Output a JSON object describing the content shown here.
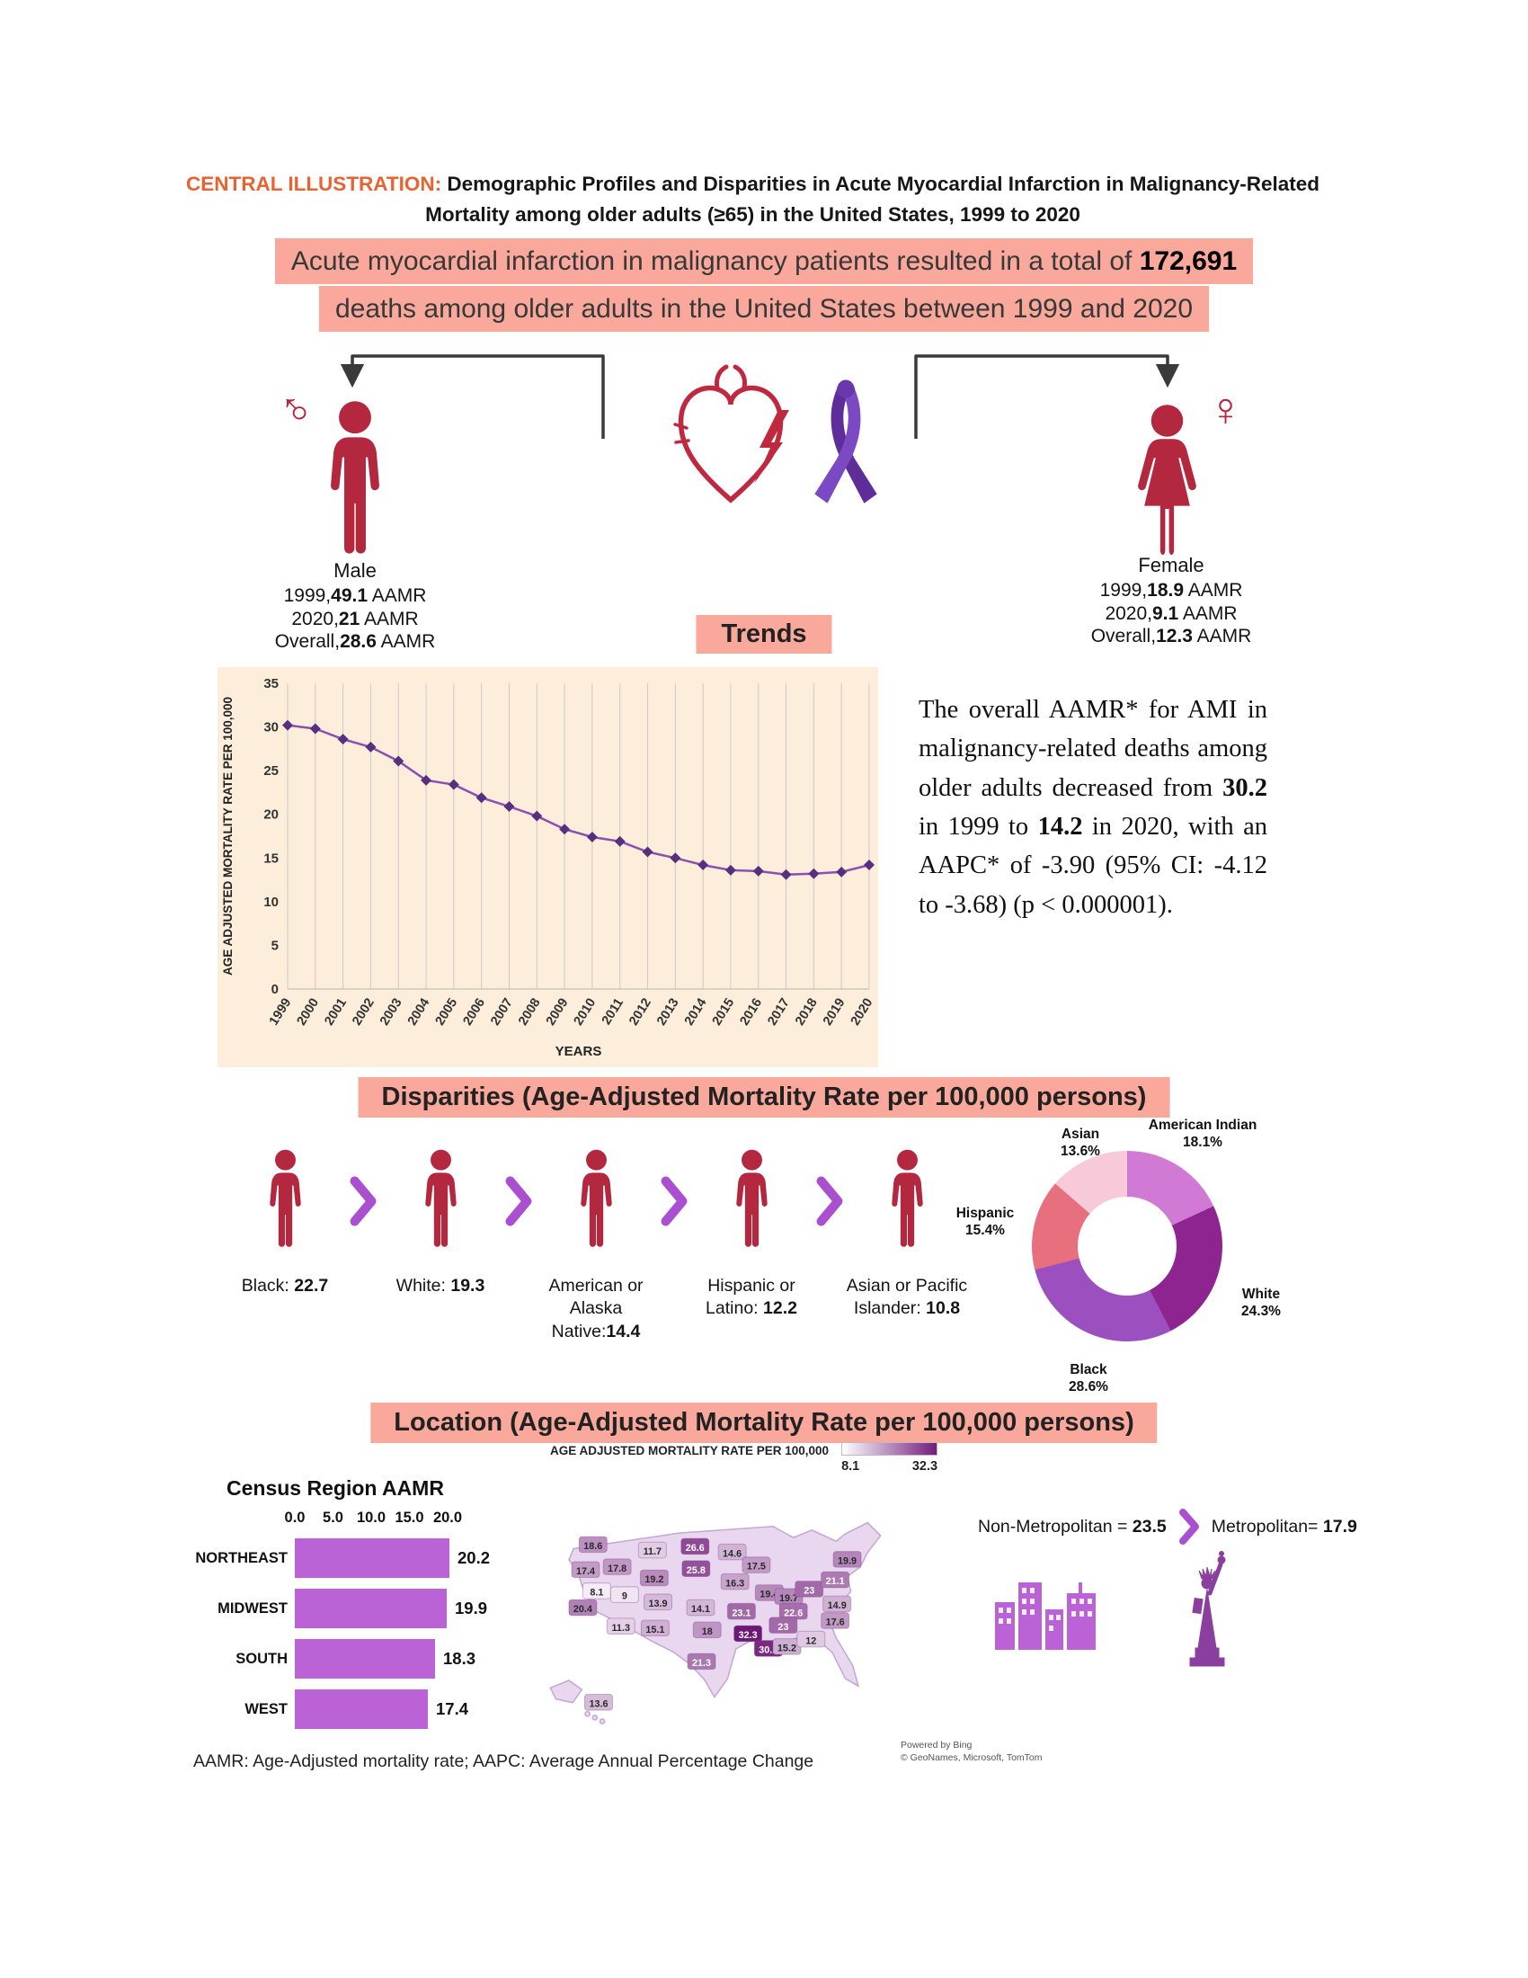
{
  "header": {
    "prefix": "CENTRAL ILLUSTRATION:",
    "title": " Demographic Profiles and Disparities in Acute Myocardial Infarction in Malignancy-Related Mortality among older adults (≥65) in the United States, 1999 to 2020"
  },
  "banner": {
    "line1_text": "Acute myocardial infarction in malignancy patients resulted in a total of ",
    "line1_bold": "172,691",
    "line2_text": "deaths among older adults in the United States between 1999 and 2020"
  },
  "sex_stats": {
    "male": {
      "label": "Male",
      "rows": [
        {
          "prefix": "1999,",
          "value": "49.1",
          "suffix": " AAMR"
        },
        {
          "prefix": "2020,",
          "value": "21",
          "suffix": " AAMR"
        },
        {
          "prefix": "Overall,",
          "value": "28.6",
          "suffix": " AAMR"
        }
      ]
    },
    "female": {
      "label": "Female",
      "rows": [
        {
          "prefix": "1999,",
          "value": "18.9",
          "suffix": " AAMR"
        },
        {
          "prefix": "2020,",
          "value": "9.1",
          "suffix": " AAMR"
        },
        {
          "prefix": "Overall,",
          "value": "12.3",
          "suffix": " AAMR"
        }
      ]
    }
  },
  "trends": {
    "label": "Trends",
    "paragraph": [
      {
        "text": "The overall AAMR* for AMI in malignancy-related deaths among older adults decreased from ",
        "bold": false
      },
      {
        "text": "30.2",
        "bold": true
      },
      {
        "text": " in 1999 to ",
        "bold": false
      },
      {
        "text": "14.2",
        "bold": true
      },
      {
        "text": " in 2020, with an AAPC* of -3.90 (95% CI: -4.12 to -3.68) (p < 0.000001).",
        "bold": false
      }
    ]
  },
  "disparities": {
    "header": "Disparities (Age-Adjusted Mortality Rate per 100,000 persons)",
    "groups": [
      {
        "label": "Black: ",
        "value": "22.7"
      },
      {
        "label": "White: ",
        "value": "19.3"
      },
      {
        "label": "American or Alaska Native:",
        "value": "14.4"
      },
      {
        "label": "Hispanic or Latino: ",
        "value": "12.2"
      },
      {
        "label": "Asian or Pacific Islander: ",
        "value": "10.8"
      }
    ]
  },
  "location": {
    "header": "Location (Age-Adjusted Mortality Rate per 100,000 persons)",
    "non_metro_label": "Non-Metropolitan = ",
    "non_metro_value": "23.5",
    "metro_label": "Metropolitan= ",
    "metro_value": "17.9"
  },
  "footnote": "AAMR: Age-Adjusted mortality rate; AAPC: Average Annual Percentage Change",
  "colors": {
    "highlight_pink": "#f9a89b",
    "title_prefix_orange": "#e96231",
    "figure_crimson": "#b3273f",
    "heart_crimson": "#c0283f",
    "accent_purple": "#a94fd0",
    "chart_panel_bg": "#fdeedc",
    "line_purple": "#8a4fb0",
    "marker_purple": "#56307f",
    "bar_orchid": "#bb63d6",
    "map_scale_max": "#741c7b"
  },
  "chart_data": [
    {
      "id": "aamr-trend",
      "type": "line",
      "title": "Trends",
      "xlabel": "YEARS",
      "ylabel": "AGE ADJUSTED MORTALITY RATE PER 100,000",
      "ylim": [
        0,
        35
      ],
      "yticks": [
        0,
        5,
        10,
        15,
        20,
        25,
        30,
        35
      ],
      "grid": "vertical",
      "legend": "none",
      "x": [
        "1999",
        "2000",
        "2001",
        "2002",
        "2003",
        "2004",
        "2005",
        "2006",
        "2007",
        "2008",
        "2009",
        "2010",
        "2011",
        "2012",
        "2013",
        "2014",
        "2015",
        "2016",
        "2017",
        "2018",
        "2019",
        "2020"
      ],
      "values": [
        30.2,
        29.8,
        28.6,
        27.7,
        26.1,
        23.9,
        23.4,
        21.9,
        20.9,
        19.8,
        18.3,
        17.4,
        16.9,
        15.7,
        15.0,
        14.2,
        13.6,
        13.5,
        13.1,
        13.2,
        13.4,
        14.2
      ]
    },
    {
      "id": "race-donut",
      "type": "pie",
      "donut": true,
      "segments": [
        {
          "label": "American Indian",
          "pct": 18.1,
          "color": "#d07ad6"
        },
        {
          "label": "White",
          "pct": 24.3,
          "color": "#8e2490"
        },
        {
          "label": "Black",
          "pct": 28.6,
          "color": "#9c50c0"
        },
        {
          "label": "Hispanic",
          "pct": 15.4,
          "color": "#e8707e"
        },
        {
          "label": "Asian",
          "pct": 13.6,
          "color": "#f7c9d9"
        }
      ]
    },
    {
      "id": "census-bar",
      "type": "bar",
      "title": "Census Region AAMR",
      "categories": [
        "NORTHEAST",
        "MIDWEST",
        "SOUTH",
        "WEST"
      ],
      "values": [
        20.2,
        19.9,
        18.3,
        17.4
      ],
      "xticks": [
        "0.0",
        "5.0",
        "10.0",
        "15.0",
        "20.0"
      ],
      "xlim": [
        0,
        20
      ]
    },
    {
      "id": "us-map",
      "type": "heatmap",
      "legend_title": "AGE ADJUSTED MORTALITY RATE PER 100,000",
      "legend_min": 8.1,
      "legend_max": 32.3,
      "credit": [
        "Powered by Bing",
        "© GeoNames, Microsoft, TomTom"
      ],
      "states": [
        {
          "state": "WA",
          "value": 18.6
        },
        {
          "state": "OR",
          "value": 17.4
        },
        {
          "state": "ID",
          "value": 17.8
        },
        {
          "state": "MT",
          "value": 11.7
        },
        {
          "state": "ND",
          "value": 26.6
        },
        {
          "state": "SD",
          "value": 25.8
        },
        {
          "state": "MN",
          "value": 14.6
        },
        {
          "state": "WI",
          "value": 17.5
        },
        {
          "state": "IL",
          "value": 19.4
        },
        {
          "state": "IN",
          "value": 19.7
        },
        {
          "state": "OH",
          "value": 23
        },
        {
          "state": "PA",
          "value": 21.1
        },
        {
          "state": "NY",
          "value": 19.9
        },
        {
          "state": "WY",
          "value": 19.2
        },
        {
          "state": "IA",
          "value": 16.3
        },
        {
          "state": "NV",
          "value": 8.1
        },
        {
          "state": "UT",
          "value": 9
        },
        {
          "state": "CA",
          "value": 20.4
        },
        {
          "state": "CO",
          "value": 13.9
        },
        {
          "state": "KS",
          "value": 14.1
        },
        {
          "state": "MO",
          "value": 23.1
        },
        {
          "state": "KY",
          "value": 22.6
        },
        {
          "state": "VA",
          "value": 14.9
        },
        {
          "state": "NC",
          "value": 17.6
        },
        {
          "state": "TN",
          "value": 23
        },
        {
          "state": "AZ",
          "value": 11.3
        },
        {
          "state": "NM",
          "value": 15.1
        },
        {
          "state": "OK",
          "value": 18
        },
        {
          "state": "AR",
          "value": 32.3
        },
        {
          "state": "MS",
          "value": 30.2
        },
        {
          "state": "AL",
          "value": 15.2
        },
        {
          "state": "GA",
          "value": 12
        },
        {
          "state": "TX",
          "value": 21.3
        },
        {
          "state": "HI",
          "value": 13.6
        }
      ]
    }
  ]
}
